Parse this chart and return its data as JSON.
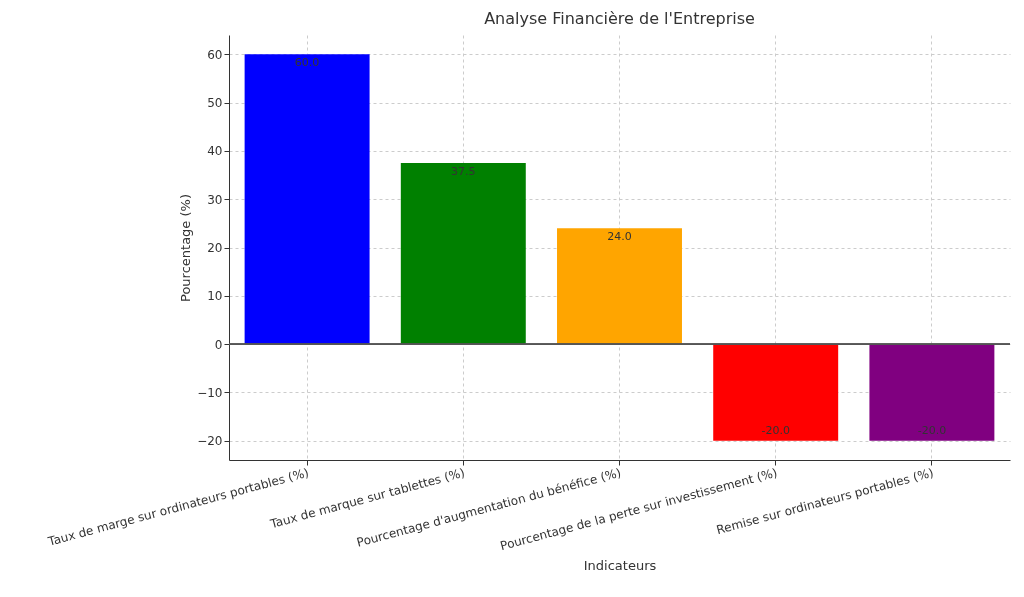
{
  "chart_data": {
    "type": "bar",
    "title": "Analyse Financière de l'Entreprise",
    "xlabel": "Indicateurs",
    "ylabel": "Pourcentage (%)",
    "categories": [
      "Taux de marge sur ordinateurs portables (%)",
      "Taux de marque sur tablettes (%)",
      "Pourcentage d'augmentation du bénéfice (%)",
      "Pourcentage de la perte sur investissement (%)",
      "Remise sur ordinateurs portables (%)"
    ],
    "values": [
      60.0,
      37.5,
      24.0,
      -20.0,
      -20.0
    ],
    "value_labels": [
      "60.0",
      "37.5",
      "24.0",
      "-20.0",
      "-20.0"
    ],
    "colors": [
      "#0000ff",
      "#008000",
      "#ffa500",
      "#ff0000",
      "#800080"
    ],
    "ylim": [
      -24,
      64
    ],
    "yticks": [
      -20,
      -10,
      0,
      10,
      20,
      30,
      40,
      50,
      60
    ],
    "grid": true
  }
}
